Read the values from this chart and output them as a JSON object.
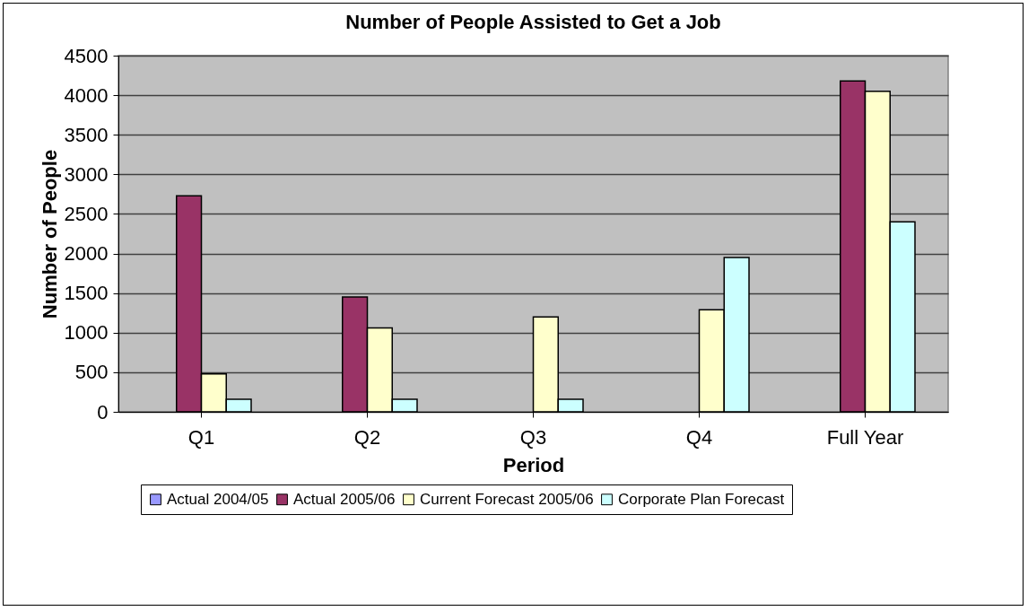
{
  "chart_data": {
    "type": "bar",
    "title": "Number of People Assisted to Get a Job",
    "xlabel": "Period",
    "ylabel": "Number of People",
    "categories": [
      "Q1",
      "Q2",
      "Q3",
      "Q4",
      "Full Year"
    ],
    "series": [
      {
        "name": "Actual 2004/05",
        "color": "#9999ff",
        "values": [
          null,
          null,
          null,
          null,
          null
        ]
      },
      {
        "name": "Actual 2005/06",
        "color": "#993366",
        "values": [
          2730,
          1450,
          null,
          null,
          4180
        ]
      },
      {
        "name": "Current Forecast 2005/06",
        "color": "#ffffcc",
        "values": [
          480,
          1060,
          1200,
          1290,
          4050
        ]
      },
      {
        "name": "Corporate Plan Forecast",
        "color": "#ccffff",
        "values": [
          160,
          160,
          160,
          1950,
          2400
        ]
      }
    ],
    "ylim": [
      0,
      4500
    ],
    "yticks": [
      0,
      500,
      1000,
      1500,
      2000,
      2500,
      3000,
      3500,
      4000,
      4500
    ],
    "grid": "y",
    "legend": "bottom"
  }
}
